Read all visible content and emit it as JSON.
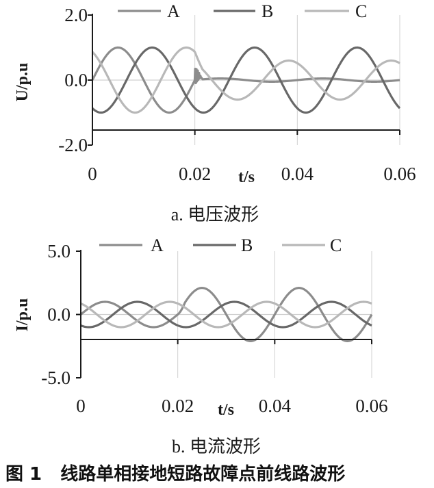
{
  "figure_caption": "图 1   线路单相接地短路故障点前线路波形",
  "colors": {
    "A": "#8c8c8c",
    "B": "#686868",
    "C": "#b8b8b8",
    "axis": "#1a1a1a",
    "grid": "#d0d0d0"
  },
  "chart_data": [
    {
      "type": "line",
      "caption": "a. 电压波形",
      "xlabel": "t/s",
      "ylabel": "U/p.u",
      "xlim": [
        0,
        0.06
      ],
      "ylim": [
        -2.0,
        2.0
      ],
      "x_ticks": [
        "0",
        "0.02",
        "0.04",
        "0.06"
      ],
      "y_ticks": [
        "2.0",
        "0.0",
        "-2.0"
      ],
      "grid": "vertical",
      "legend_position": "top",
      "frequency_hz": 50,
      "series": [
        {
          "name": "A",
          "color": "#8c8c8c",
          "amplitude_before": 1.0,
          "amplitude_after": 0.05,
          "phase_deg": 0
        },
        {
          "name": "B",
          "color": "#686868",
          "amplitude_before": 1.0,
          "amplitude_after": 1.0,
          "phase_deg": -120
        },
        {
          "name": "C",
          "color": "#b8b8b8",
          "amplitude_before": 1.0,
          "amplitude_after": 0.6,
          "phase_deg": 120
        }
      ],
      "fault_time": 0.02
    },
    {
      "type": "line",
      "caption": "b. 电流波形",
      "xlabel": "t/s",
      "ylabel": "I/p.u",
      "xlim": [
        0,
        0.06
      ],
      "ylim": [
        -5.0,
        5.0
      ],
      "x_ticks": [
        "0",
        "0.02",
        "0.04",
        "0.06"
      ],
      "y_ticks": [
        "5.0",
        "0.0",
        "-5.0"
      ],
      "grid": "vertical",
      "legend_position": "top",
      "frequency_hz": 50,
      "series": [
        {
          "name": "A",
          "color": "#8c8c8c",
          "amplitude_before": 1.0,
          "amplitude_after": 2.1,
          "phase_deg": 0
        },
        {
          "name": "B",
          "color": "#686868",
          "amplitude_before": 1.0,
          "amplitude_after": 1.0,
          "phase_deg": -120
        },
        {
          "name": "C",
          "color": "#b8b8b8",
          "amplitude_before": 1.0,
          "amplitude_after": 1.0,
          "phase_deg": 120
        }
      ],
      "fault_time": 0.02
    }
  ]
}
